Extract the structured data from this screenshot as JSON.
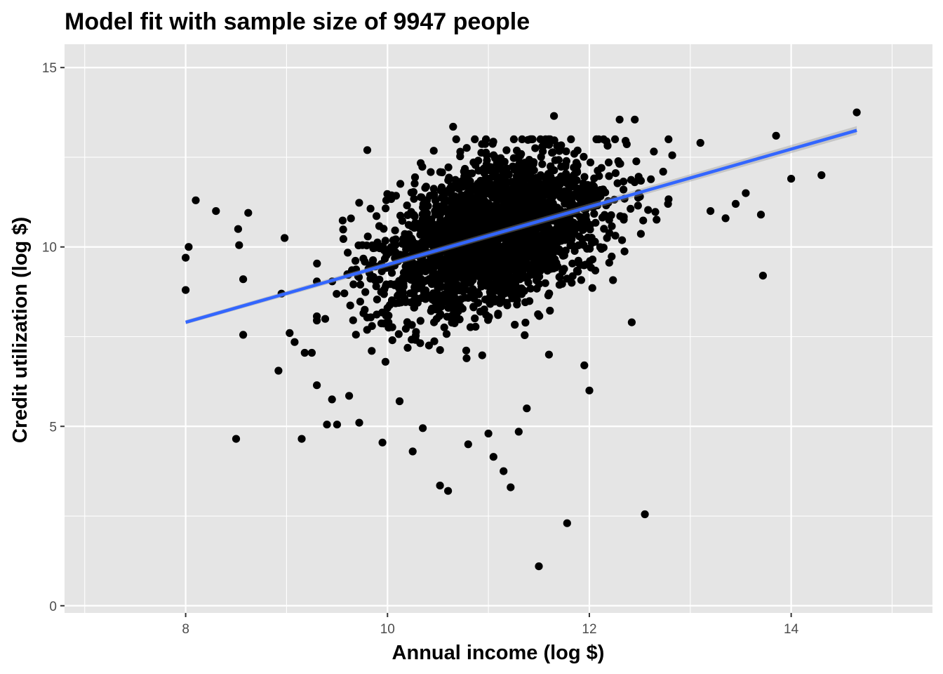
{
  "chart_data": {
    "type": "scatter",
    "title": "Model fit with sample size of 9947 people",
    "xlabel": "Annual income (log $)",
    "ylabel": "Credit utilization (log $)",
    "xlim": [
      6.8,
      15.4
    ],
    "ylim": [
      -0.2,
      15.65
    ],
    "x_ticks": [
      8,
      10,
      12,
      14
    ],
    "x_tick_labels": [
      "8",
      "10",
      "12",
      "14"
    ],
    "y_ticks": [
      0,
      5,
      10,
      15
    ],
    "y_tick_labels": [
      "0",
      "5",
      "10",
      "15"
    ],
    "grid": true,
    "n_points": 9947,
    "point_color": "#000000",
    "panel_background": "#e5e5e5",
    "grid_color": "#ffffff",
    "trend_line": {
      "method": "linear",
      "color": "#3366ff",
      "start": {
        "x": 8.0,
        "y": 7.9
      },
      "end": {
        "x": 14.65,
        "y": 13.25
      }
    },
    "series": [
      {
        "points": [
          [
            8.0,
            9.7
          ],
          [
            8.0,
            8.8
          ],
          [
            8.03,
            10.0
          ],
          [
            8.1,
            11.3
          ],
          [
            8.3,
            11.0
          ],
          [
            8.5,
            4.65
          ],
          [
            8.52,
            10.5
          ],
          [
            8.53,
            10.05
          ],
          [
            8.57,
            7.55
          ],
          [
            8.57,
            9.1
          ],
          [
            8.62,
            10.95
          ],
          [
            8.92,
            6.55
          ],
          [
            8.95,
            8.7
          ],
          [
            8.98,
            10.25
          ],
          [
            9.03,
            7.6
          ],
          [
            9.08,
            7.35
          ],
          [
            9.15,
            4.65
          ],
          [
            9.18,
            7.05
          ],
          [
            9.25,
            7.05
          ],
          [
            9.4,
            5.05
          ],
          [
            9.45,
            5.75
          ],
          [
            9.5,
            5.05
          ],
          [
            9.62,
            5.85
          ],
          [
            9.72,
            5.1
          ],
          [
            9.8,
            12.7
          ],
          [
            9.95,
            4.55
          ],
          [
            9.98,
            6.8
          ],
          [
            10.12,
            5.7
          ],
          [
            10.25,
            4.3
          ],
          [
            10.35,
            4.95
          ],
          [
            10.52,
            3.35
          ],
          [
            10.6,
            3.2
          ],
          [
            10.8,
            4.5
          ],
          [
            11.0,
            4.8
          ],
          [
            11.05,
            4.15
          ],
          [
            11.15,
            3.75
          ],
          [
            11.22,
            3.3
          ],
          [
            11.3,
            4.85
          ],
          [
            11.38,
            5.5
          ],
          [
            11.5,
            1.1
          ],
          [
            11.6,
            7.0
          ],
          [
            11.78,
            2.3
          ],
          [
            11.95,
            6.7
          ],
          [
            12.0,
            6.0
          ],
          [
            12.42,
            7.9
          ],
          [
            12.55,
            2.55
          ],
          [
            12.78,
            11.2
          ],
          [
            13.1,
            12.9
          ],
          [
            13.2,
            11.0
          ],
          [
            13.35,
            10.8
          ],
          [
            13.45,
            11.2
          ],
          [
            13.55,
            11.5
          ],
          [
            13.7,
            10.9
          ],
          [
            13.72,
            9.2
          ],
          [
            13.85,
            13.1
          ],
          [
            14.0,
            11.9
          ],
          [
            14.3,
            12.0
          ],
          [
            14.65,
            13.75
          ],
          [
            11.65,
            13.65
          ],
          [
            10.65,
            13.35
          ],
          [
            12.45,
            13.55
          ],
          [
            12.3,
            13.55
          ]
        ]
      }
    ]
  }
}
